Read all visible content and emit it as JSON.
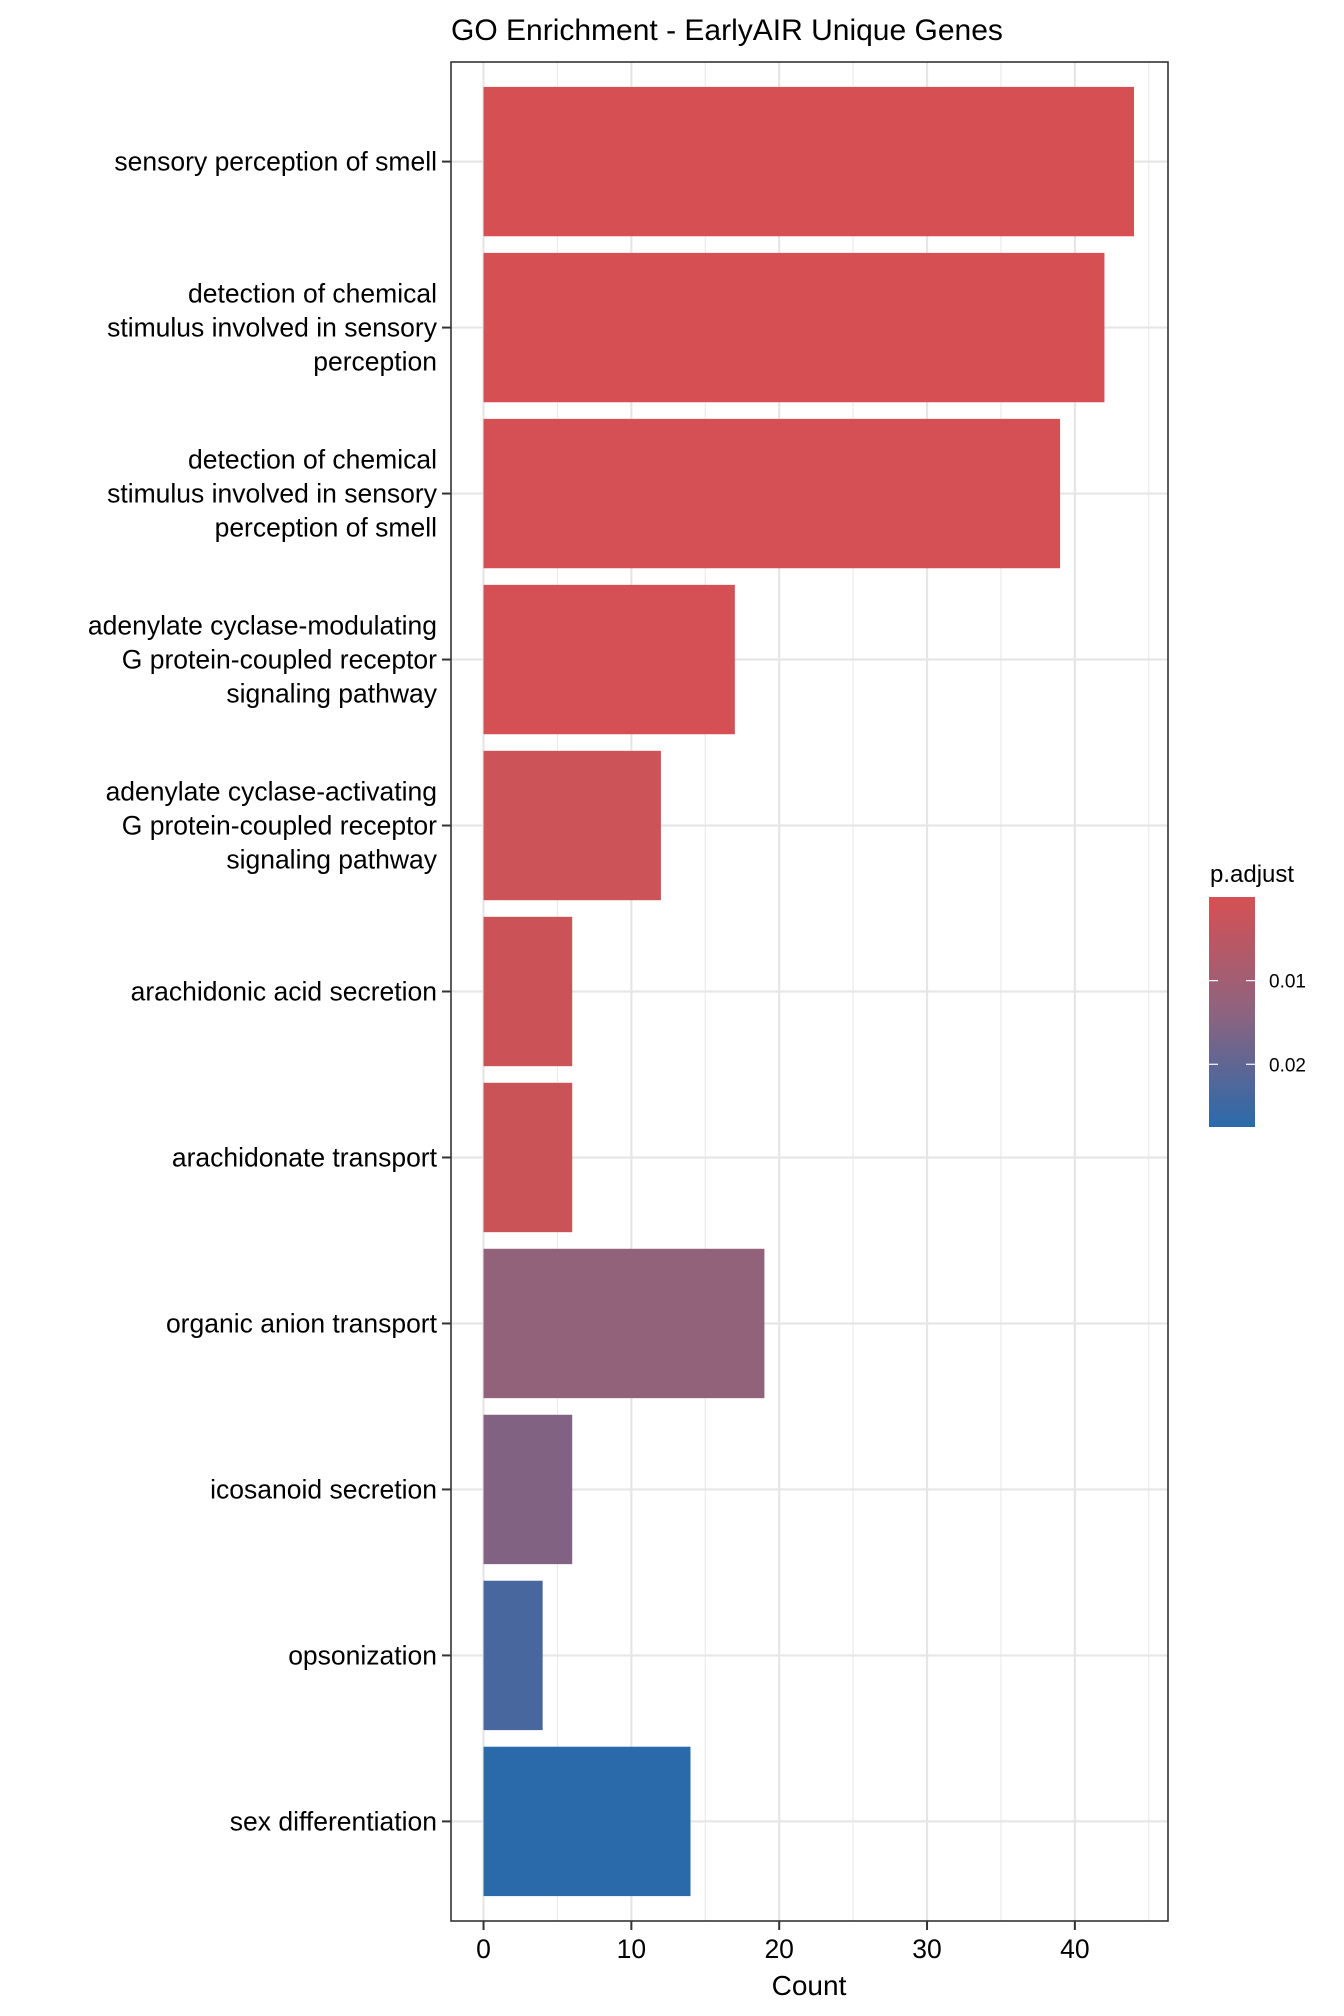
{
  "chart_data": {
    "type": "bar",
    "orientation": "horizontal",
    "title": "GO Enrichment - EarlyAIR Unique Genes",
    "xlabel": "Count",
    "ylabel": "",
    "xlim": [
      -2.2,
      46.3
    ],
    "xticks": [
      0,
      10,
      20,
      30,
      40
    ],
    "x_minor_gridlines": [
      5,
      15,
      25,
      35,
      45
    ],
    "grid": true,
    "categories": [
      [
        "sensory perception of smell"
      ],
      [
        "detection of chemical",
        "stimulus involved in sensory",
        "perception"
      ],
      [
        "detection of chemical",
        "stimulus involved in sensory",
        "perception of smell"
      ],
      [
        "adenylate cyclase-modulating",
        "G protein-coupled receptor",
        "signaling pathway"
      ],
      [
        "adenylate cyclase-activating",
        "G protein-coupled receptor",
        "signaling pathway"
      ],
      [
        "arachidonic acid secretion"
      ],
      [
        "arachidonate transport"
      ],
      [
        "organic anion transport"
      ],
      [
        "icosanoid secretion"
      ],
      [
        "opsonization"
      ],
      [
        "sex differentiation"
      ]
    ],
    "values": [
      44,
      42,
      39,
      17,
      12,
      6,
      6,
      19,
      6,
      4,
      14
    ],
    "bar_colors": [
      "#D65053",
      "#D65053",
      "#D55054",
      "#D45054",
      "#CC5357",
      "#CB5357",
      "#CA5357",
      "#92627B",
      "#826283",
      "#48679F",
      "#2A6AAB"
    ],
    "legend": {
      "title": "p.adjust",
      "type": "colorbar",
      "position": "right",
      "range": [
        0.0,
        0.0275
      ],
      "ticks": [
        0.01,
        0.02
      ],
      "tick_labels": [
        "0.01",
        "0.02"
      ],
      "low_color": "#D65053",
      "high_color": "#2A6AAB"
    }
  }
}
